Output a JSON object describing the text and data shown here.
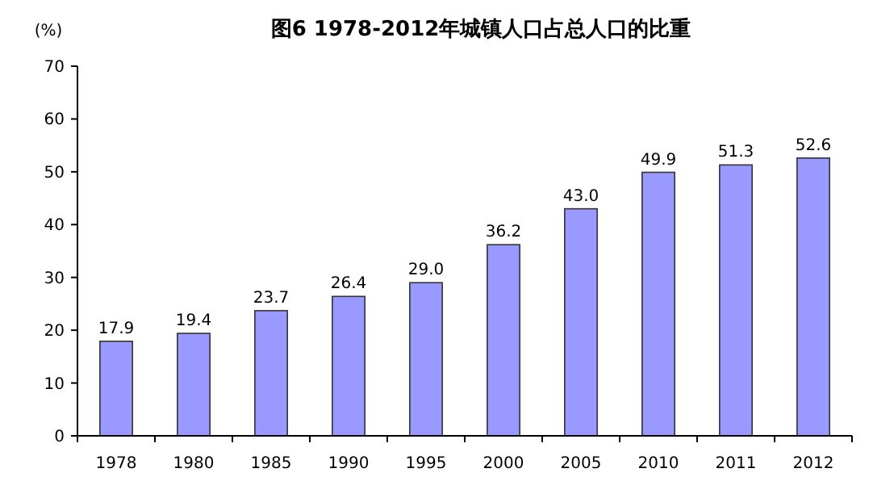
{
  "chart_data": {
    "type": "bar",
    "title": "图6 1978-2012年城镇人口占总人口的比重",
    "ylabel": "(%)",
    "categories": [
      "1978",
      "1980",
      "1985",
      "1990",
      "1995",
      "2000",
      "2005",
      "2010",
      "2011",
      "2012"
    ],
    "values": [
      17.9,
      19.4,
      23.7,
      26.4,
      29.0,
      36.2,
      43.0,
      49.9,
      51.3,
      52.6
    ],
    "value_labels": [
      "17.9",
      "19.4",
      "23.7",
      "26.4",
      "29.0",
      "36.2",
      "43.0",
      "49.9",
      "51.3",
      "52.6"
    ],
    "color": "#9999ff",
    "ylim": [
      0,
      70
    ],
    "yticks": [
      0,
      10,
      20,
      30,
      40,
      50,
      60,
      70
    ],
    "grid": false
  }
}
